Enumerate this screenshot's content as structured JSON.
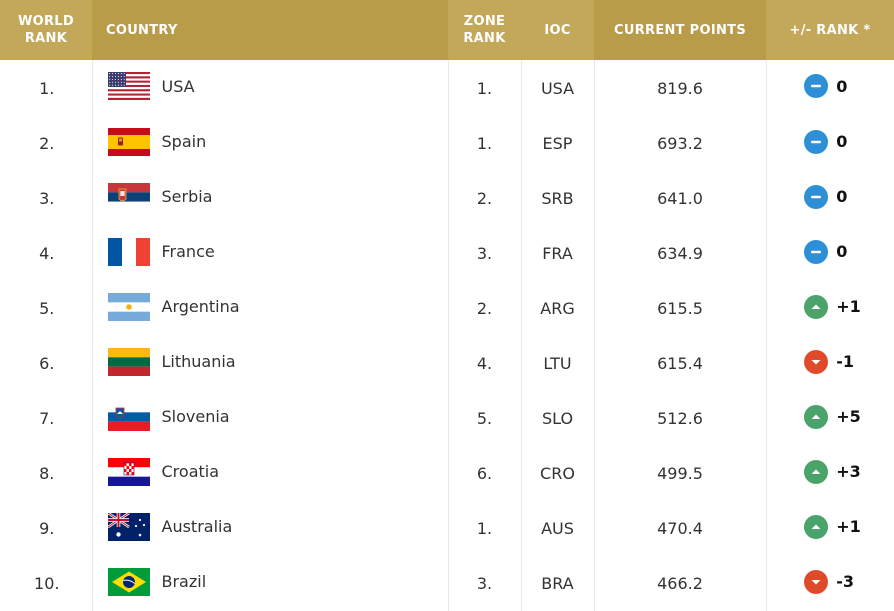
{
  "headers": {
    "world_rank_1": "WORLD",
    "world_rank_2": "RANK",
    "country": "COUNTRY",
    "zone_rank_1": "ZONE",
    "zone_rank_2": "RANK",
    "ioc": "IOC",
    "current_points": "CURRENT POINTS",
    "change": "+/- RANK *"
  },
  "colors": {
    "header_bg": "#c4a85a",
    "neutral": "#2d8fd5",
    "up": "#4aa36a",
    "down": "#e04a2a"
  },
  "rows": [
    {
      "rank": "1.",
      "country": "USA",
      "flag": "usa-flag-icon",
      "zone": "1.",
      "ioc": "USA",
      "points": "819.6",
      "trend": "neutral",
      "change": "0"
    },
    {
      "rank": "2.",
      "country": "Spain",
      "flag": "spain-flag-icon",
      "zone": "1.",
      "ioc": "ESP",
      "points": "693.2",
      "trend": "neutral",
      "change": "0"
    },
    {
      "rank": "3.",
      "country": "Serbia",
      "flag": "serbia-flag-icon",
      "zone": "2.",
      "ioc": "SRB",
      "points": "641.0",
      "trend": "neutral",
      "change": "0"
    },
    {
      "rank": "4.",
      "country": "France",
      "flag": "france-flag-icon",
      "zone": "3.",
      "ioc": "FRA",
      "points": "634.9",
      "trend": "neutral",
      "change": "0"
    },
    {
      "rank": "5.",
      "country": "Argentina",
      "flag": "argentina-flag-icon",
      "zone": "2.",
      "ioc": "ARG",
      "points": "615.5",
      "trend": "up",
      "change": "+1"
    },
    {
      "rank": "6.",
      "country": "Lithuania",
      "flag": "lithuania-flag-icon",
      "zone": "4.",
      "ioc": "LTU",
      "points": "615.4",
      "trend": "down",
      "change": "-1"
    },
    {
      "rank": "7.",
      "country": "Slovenia",
      "flag": "slovenia-flag-icon",
      "zone": "5.",
      "ioc": "SLO",
      "points": "512.6",
      "trend": "up",
      "change": "+5"
    },
    {
      "rank": "8.",
      "country": "Croatia",
      "flag": "croatia-flag-icon",
      "zone": "6.",
      "ioc": "CRO",
      "points": "499.5",
      "trend": "up",
      "change": "+3"
    },
    {
      "rank": "9.",
      "country": "Australia",
      "flag": "australia-flag-icon",
      "zone": "1.",
      "ioc": "AUS",
      "points": "470.4",
      "trend": "up",
      "change": "+1"
    },
    {
      "rank": "10.",
      "country": "Brazil",
      "flag": "brazil-flag-icon",
      "zone": "3.",
      "ioc": "BRA",
      "points": "466.2",
      "trend": "down",
      "change": "-3"
    }
  ]
}
